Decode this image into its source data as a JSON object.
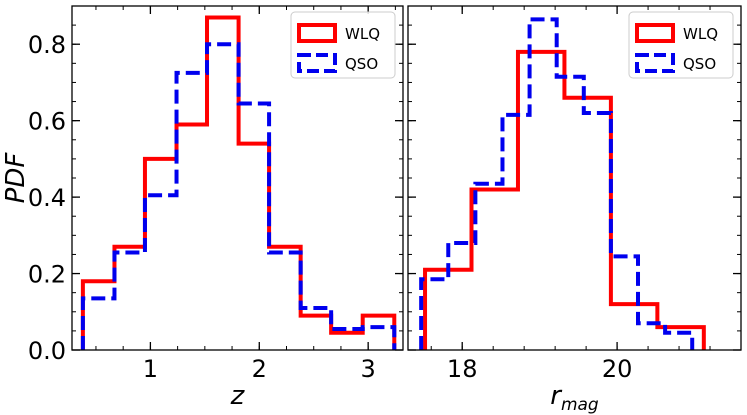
{
  "chart_data": [
    {
      "type": "line",
      "subtype": "step-histogram",
      "xlabel": "z",
      "ylabel": "PDF",
      "xlim": [
        0.28,
        3.32
      ],
      "ylim": [
        0.0,
        0.9
      ],
      "xticks": [
        1,
        2,
        3
      ],
      "yticks": [
        0.0,
        0.2,
        0.4,
        0.6,
        0.8
      ],
      "legend_position": "top-right",
      "series": [
        {
          "name": "WLQ",
          "color": "#ff0000",
          "style": "solid",
          "bin_edges": [
            0.38,
            0.67,
            0.95,
            1.24,
            1.52,
            1.81,
            2.09,
            2.38,
            2.66,
            2.95,
            3.24
          ],
          "values": [
            0.18,
            0.27,
            0.5,
            0.59,
            0.87,
            0.54,
            0.27,
            0.09,
            0.045,
            0.09
          ]
        },
        {
          "name": "QSO",
          "color": "#0000ee",
          "style": "dashed",
          "bin_edges": [
            0.38,
            0.67,
            0.95,
            1.24,
            1.52,
            1.81,
            2.09,
            2.38,
            2.66,
            2.95,
            3.24
          ],
          "values": [
            0.135,
            0.255,
            0.405,
            0.725,
            0.8,
            0.645,
            0.255,
            0.11,
            0.055,
            0.06
          ]
        }
      ]
    },
    {
      "type": "line",
      "subtype": "step-histogram",
      "xlabel": "r",
      "xlabel_sub": "mag",
      "ylabel": "",
      "xlim": [
        17.3,
        21.6
      ],
      "ylim": [
        0.0,
        0.9
      ],
      "xticks": [
        18,
        20
      ],
      "yticks": [
        0.0,
        0.2,
        0.4,
        0.6,
        0.8
      ],
      "legend_position": "top-right",
      "series": [
        {
          "name": "WLQ",
          "color": "#ff0000",
          "style": "solid",
          "bin_edges": [
            17.52,
            18.12,
            18.72,
            19.32,
            19.92,
            20.52,
            21.12
          ],
          "values": [
            0.21,
            0.42,
            0.78,
            0.66,
            0.12,
            0.06
          ]
        },
        {
          "name": "QSO",
          "color": "#0000ee",
          "style": "dashed",
          "bin_edges": [
            17.47,
            17.82,
            18.17,
            18.52,
            18.87,
            19.22,
            19.57,
            19.92,
            20.27,
            20.62,
            20.97
          ],
          "values": [
            0.185,
            0.28,
            0.435,
            0.615,
            0.865,
            0.715,
            0.62,
            0.245,
            0.07,
            0.045
          ]
        }
      ]
    }
  ]
}
